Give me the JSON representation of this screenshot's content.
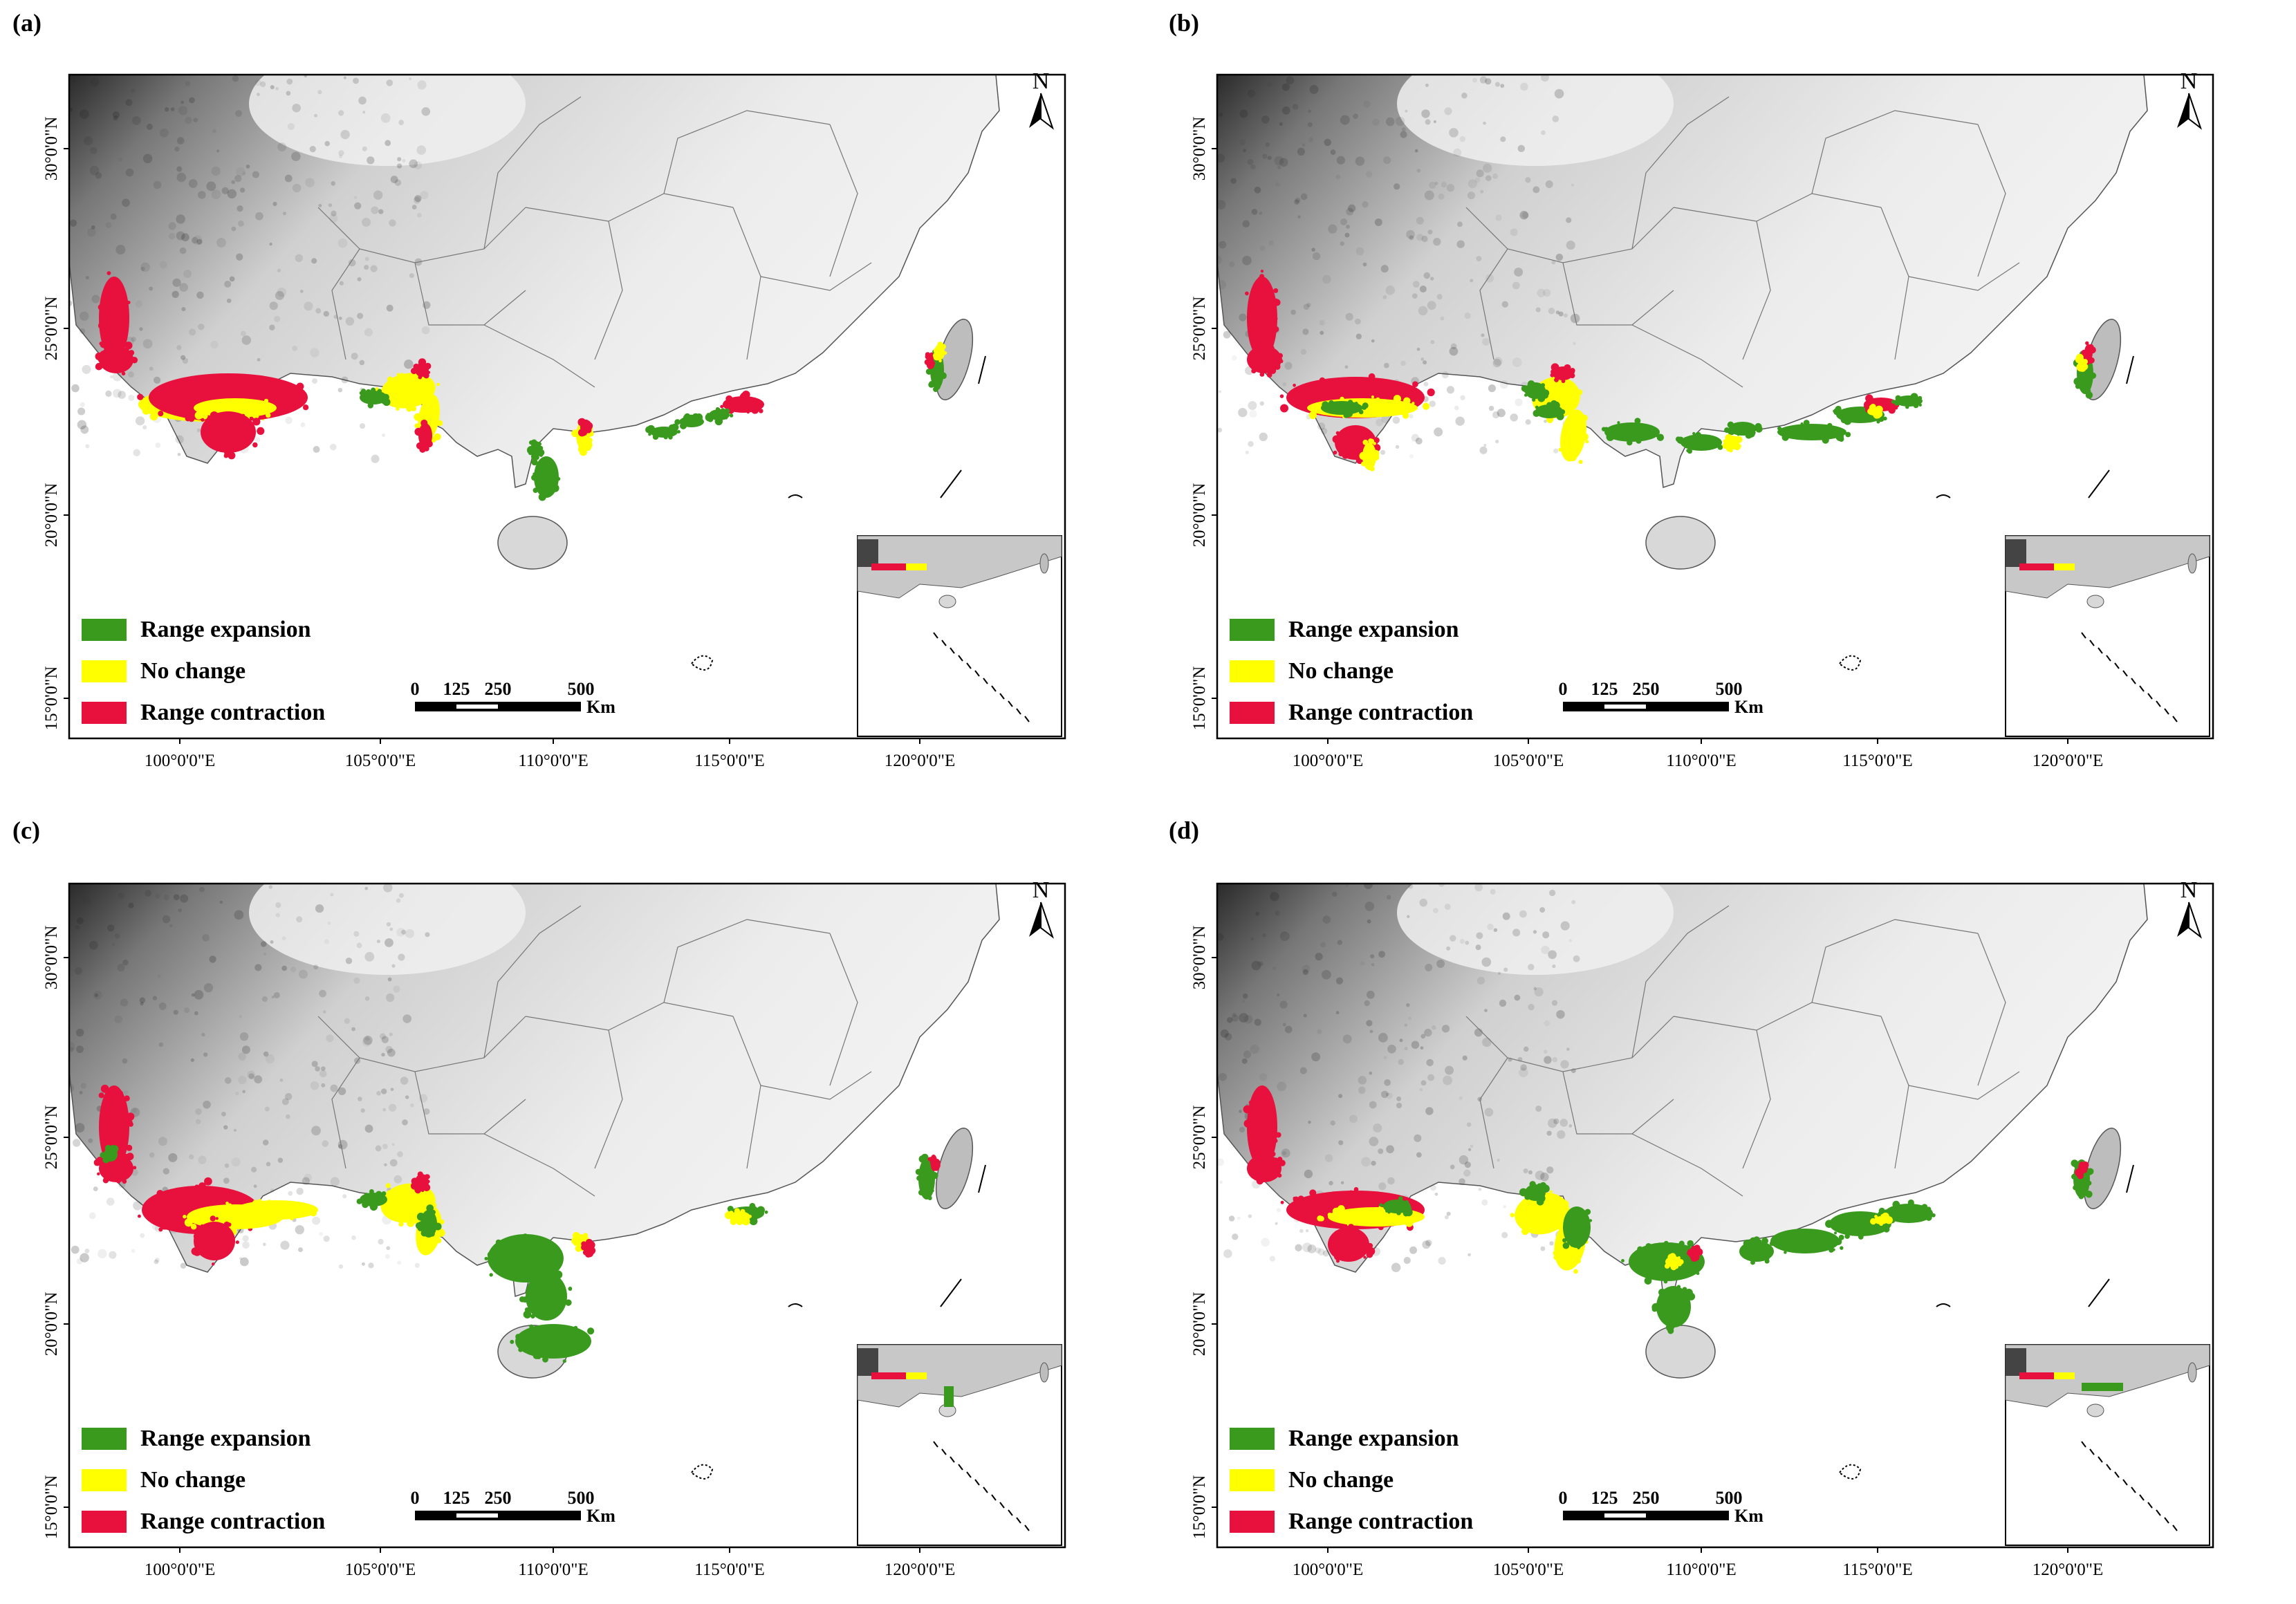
{
  "panels": [
    {
      "id": "a",
      "label": "(a)"
    },
    {
      "id": "b",
      "label": "(b)"
    },
    {
      "id": "c",
      "label": "(c)"
    },
    {
      "id": "d",
      "label": "(d)"
    }
  ],
  "axes": {
    "lon_ticks": [
      "100°0'0\"E",
      "105°0'0\"E",
      "110°0'0\"E",
      "115°0'0\"E",
      "120°0'0\"E"
    ],
    "lat_ticks": [
      "30°0'0\"N",
      "25°0'0\"N",
      "20°0'0\"N",
      "15°0'0\"N"
    ]
  },
  "legend": {
    "items": [
      {
        "label": "Range expansion",
        "color": "#3a9a1e"
      },
      {
        "label": "No change",
        "color": "#ffff00"
      },
      {
        "label": "Range contraction",
        "color": "#e8103c"
      }
    ]
  },
  "scale_bar": {
    "labels": [
      "0",
      "125",
      "250",
      "500"
    ],
    "unit": "Km"
  },
  "north_arrow": {
    "label": "N"
  }
}
